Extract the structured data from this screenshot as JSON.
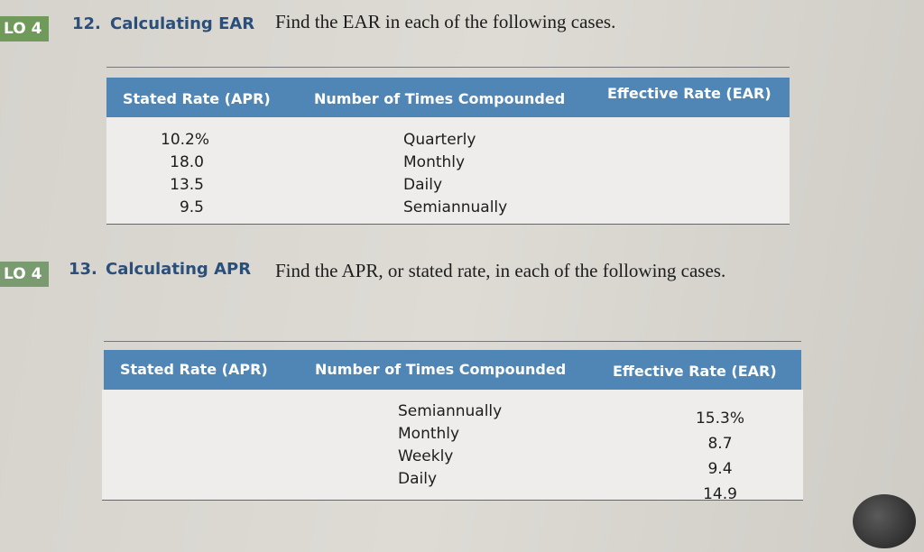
{
  "problems": [
    {
      "badge": "LO 4",
      "number": "12.",
      "title": "Calculating EAR",
      "text": "Find the EAR in each of the following cases.",
      "table": {
        "headers": [
          "Stated Rate (APR)",
          "Number of Times Compounded",
          "Effective Rate (EAR)"
        ],
        "rows": [
          {
            "apr": "10.2%",
            "compounding": "Quarterly"
          },
          {
            "apr": "18.0",
            "compounding": "Monthly"
          },
          {
            "apr": "13.5",
            "compounding": "Daily"
          },
          {
            "apr": "9.5",
            "compounding": "Semiannually"
          }
        ]
      }
    },
    {
      "badge": "LO 4",
      "number": "13.",
      "title": "Calculating APR",
      "text": "Find the APR, or stated rate, in each of the following cases.",
      "table": {
        "headers": [
          "Stated Rate (APR)",
          "Number of Times Compounded",
          "Effective Rate (EAR)"
        ],
        "rows": [
          {
            "compounding": "Semiannually",
            "ear": "15.3%"
          },
          {
            "compounding": "Monthly",
            "ear": "8.7"
          },
          {
            "compounding": "Weekly",
            "ear": "9.4"
          },
          {
            "compounding": "Daily",
            "ear": "14.9"
          }
        ]
      }
    }
  ]
}
